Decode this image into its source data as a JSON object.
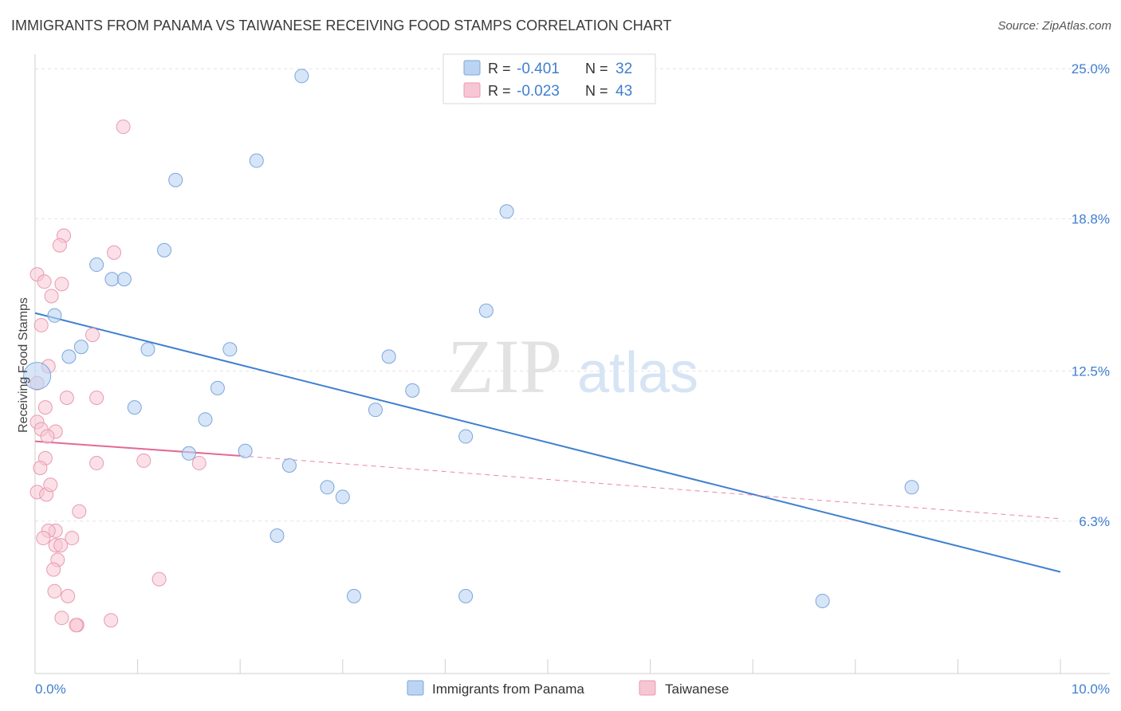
{
  "header": {
    "title": "IMMIGRANTS FROM PANAMA VS TAIWANESE RECEIVING FOOD STAMPS CORRELATION CHART",
    "source": "Source: ZipAtlas.com"
  },
  "watermark": {
    "zip": "ZIP",
    "atlas": "atlas"
  },
  "colors": {
    "panama_fill": "#bcd4f3",
    "panama_stroke": "#7aa6dc",
    "panama_line": "#3f7fd0",
    "taiwan_fill": "#f7c6d4",
    "taiwan_stroke": "#e89ab2",
    "taiwan_line": "#e36a96",
    "axis_text": "#3f7fd0",
    "grid": "#e3e3e3"
  },
  "stats": {
    "panama": {
      "r_label": "R =",
      "r": "-0.401",
      "n_label": "N =",
      "n": "32"
    },
    "taiwan": {
      "r_label": "R =",
      "r": "-0.023",
      "n_label": "N =",
      "n": "43"
    }
  },
  "chart_data": {
    "type": "scatter",
    "title": "IMMIGRANTS FROM PANAMA VS TAIWANESE RECEIVING FOOD STAMPS CORRELATION CHART",
    "xlabel": "",
    "ylabel": "Receiving Food Stamps",
    "xlim": [
      0,
      10
    ],
    "ylim": [
      0,
      25.6
    ],
    "x_tick_labels": [
      "0.0%",
      "10.0%"
    ],
    "y_ticks": [
      6.3,
      12.5,
      18.8,
      25.0
    ],
    "y_tick_labels": [
      "6.3%",
      "12.5%",
      "18.8%",
      "25.0%"
    ],
    "legend": [
      "Immigrants from Panama",
      "Taiwanese"
    ],
    "series": [
      {
        "name": "Immigrants from Panama",
        "points": [
          [
            2.6,
            24.7
          ],
          [
            2.16,
            21.2
          ],
          [
            1.37,
            20.4
          ],
          [
            4.6,
            19.1
          ],
          [
            1.26,
            17.5
          ],
          [
            0.6,
            16.9
          ],
          [
            0.75,
            16.3
          ],
          [
            0.87,
            16.3
          ],
          [
            0.19,
            14.8
          ],
          [
            4.4,
            15.0
          ],
          [
            0.45,
            13.5
          ],
          [
            0.33,
            13.1
          ],
          [
            1.1,
            13.4
          ],
          [
            1.9,
            13.4
          ],
          [
            3.45,
            13.1
          ],
          [
            0.02,
            12.3
          ],
          [
            1.78,
            11.8
          ],
          [
            3.68,
            11.7
          ],
          [
            0.97,
            11.0
          ],
          [
            3.32,
            10.9
          ],
          [
            1.66,
            10.5
          ],
          [
            4.2,
            9.8
          ],
          [
            2.05,
            9.2
          ],
          [
            1.5,
            9.1
          ],
          [
            2.48,
            8.6
          ],
          [
            8.55,
            7.7
          ],
          [
            2.85,
            7.7
          ],
          [
            3.0,
            7.3
          ],
          [
            2.36,
            5.7
          ],
          [
            3.11,
            3.2
          ],
          [
            4.2,
            3.2
          ],
          [
            7.68,
            3.0
          ]
        ],
        "trend": [
          [
            0.0,
            14.9
          ],
          [
            10.0,
            4.2
          ]
        ]
      },
      {
        "name": "Taiwanese",
        "points": [
          [
            0.86,
            22.6
          ],
          [
            0.28,
            18.1
          ],
          [
            0.24,
            17.7
          ],
          [
            0.77,
            17.4
          ],
          [
            0.02,
            16.5
          ],
          [
            0.09,
            16.2
          ],
          [
            0.26,
            16.1
          ],
          [
            0.16,
            15.6
          ],
          [
            0.06,
            14.4
          ],
          [
            0.56,
            14.0
          ],
          [
            0.13,
            12.7
          ],
          [
            0.02,
            12.0
          ],
          [
            0.31,
            11.4
          ],
          [
            0.6,
            11.4
          ],
          [
            0.1,
            11.0
          ],
          [
            0.02,
            10.4
          ],
          [
            0.06,
            10.1
          ],
          [
            0.2,
            10.0
          ],
          [
            0.12,
            9.8
          ],
          [
            0.1,
            8.9
          ],
          [
            1.06,
            8.8
          ],
          [
            0.6,
            8.7
          ],
          [
            1.6,
            8.7
          ],
          [
            0.05,
            8.5
          ],
          [
            0.02,
            7.5
          ],
          [
            0.11,
            7.4
          ],
          [
            0.15,
            7.8
          ],
          [
            0.43,
            6.7
          ],
          [
            0.2,
            5.9
          ],
          [
            0.13,
            5.9
          ],
          [
            0.08,
            5.6
          ],
          [
            0.36,
            5.6
          ],
          [
            0.2,
            5.3
          ],
          [
            0.25,
            5.3
          ],
          [
            0.22,
            4.7
          ],
          [
            0.18,
            4.3
          ],
          [
            0.19,
            3.4
          ],
          [
            0.32,
            3.2
          ],
          [
            1.21,
            3.9
          ],
          [
            0.26,
            2.3
          ],
          [
            0.74,
            2.2
          ],
          [
            0.41,
            2.0
          ],
          [
            0.4,
            2.0
          ]
        ],
        "trend_solid": [
          [
            0.0,
            9.6
          ],
          [
            2.0,
            9.0
          ]
        ],
        "trend_dashed": [
          [
            2.0,
            9.0
          ],
          [
            10.0,
            6.4
          ]
        ]
      }
    ]
  }
}
